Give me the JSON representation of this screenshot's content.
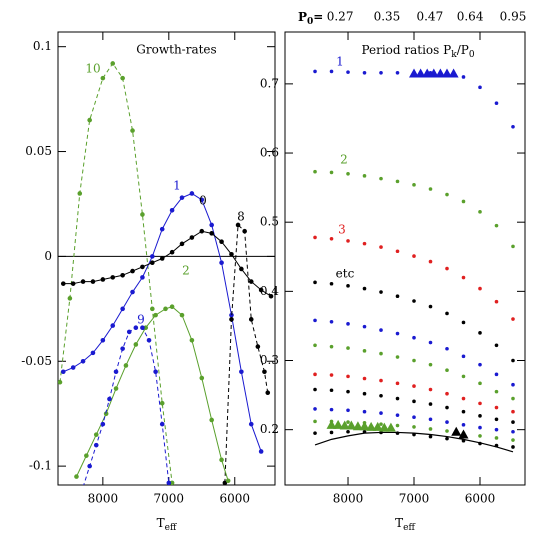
{
  "chart_data": [
    {
      "type": "line",
      "title": "Growth-rates",
      "xlabel": "T",
      "xlabel_sub": "eff",
      "xlim": [
        8680,
        5390
      ],
      "ylim": [
        -0.109,
        0.107
      ],
      "xticks": [
        8000,
        7000,
        6000
      ],
      "yticks": [
        0.1,
        0.05,
        0,
        -0.05,
        -0.1
      ],
      "hline": 0,
      "series": [
        {
          "name": "10",
          "color": "#5aa02c",
          "style": "dashed",
          "x": [
            8650,
            8500,
            8350,
            8200,
            8000,
            7850,
            7700,
            7550,
            7400,
            7250,
            7100,
            6950
          ],
          "values": [
            -0.06,
            -0.02,
            0.03,
            0.065,
            0.085,
            0.092,
            0.085,
            0.06,
            0.02,
            -0.025,
            -0.07,
            -0.108
          ]
        },
        {
          "name": "1",
          "color": "#1a1ad0",
          "style": "solid",
          "x": [
            8600,
            8450,
            8300,
            8150,
            8000,
            7850,
            7700,
            7550,
            7400,
            7250,
            7100,
            6950,
            6800,
            6650,
            6500,
            6350,
            6200,
            6050,
            5900,
            5750,
            5600
          ],
          "values": [
            -0.055,
            -0.053,
            -0.05,
            -0.046,
            -0.04,
            -0.033,
            -0.025,
            -0.017,
            -0.01,
            0.0,
            0.013,
            0.022,
            0.028,
            0.03,
            0.027,
            0.015,
            -0.003,
            -0.028,
            -0.055,
            -0.08,
            -0.093
          ]
        },
        {
          "name": "0",
          "color": "#000000",
          "style": "solid",
          "x": [
            8600,
            8450,
            8300,
            8150,
            8000,
            7850,
            7700,
            7550,
            7400,
            7250,
            7100,
            6950,
            6800,
            6650,
            6500,
            6350,
            6200,
            6050,
            5900,
            5750,
            5600,
            5450
          ],
          "values": [
            -0.013,
            -0.013,
            -0.012,
            -0.012,
            -0.011,
            -0.01,
            -0.009,
            -0.007,
            -0.005,
            -0.003,
            -0.001,
            0.002,
            0.006,
            0.009,
            0.012,
            0.011,
            0.007,
            0.001,
            -0.006,
            -0.012,
            -0.016,
            -0.019
          ]
        },
        {
          "name": "8",
          "color": "#000000",
          "style": "dashed",
          "x": [
            6150,
            6050,
            5950,
            5850,
            5750,
            5650,
            5550,
            5500
          ],
          "values": [
            -0.108,
            -0.03,
            0.015,
            0.012,
            -0.03,
            -0.043,
            -0.055,
            -0.065
          ]
        },
        {
          "name": "2",
          "color": "#5aa02c",
          "style": "solid",
          "x": [
            8400,
            8250,
            8100,
            7950,
            7800,
            7650,
            7500,
            7350,
            7200,
            7050,
            6950,
            6800,
            6650,
            6500,
            6350,
            6200,
            6100
          ],
          "values": [
            -0.105,
            -0.095,
            -0.085,
            -0.075,
            -0.063,
            -0.052,
            -0.042,
            -0.034,
            -0.028,
            -0.025,
            -0.024,
            -0.028,
            -0.04,
            -0.058,
            -0.078,
            -0.097,
            -0.107
          ]
        },
        {
          "name": "9",
          "color": "#1a1ad0",
          "style": "dashed",
          "x": [
            8300,
            8200,
            8100,
            8000,
            7900,
            7800,
            7700,
            7600,
            7500,
            7400,
            7300,
            7200,
            7100,
            7000
          ],
          "values": [
            -0.11,
            -0.1,
            -0.09,
            -0.08,
            -0.068,
            -0.055,
            -0.044,
            -0.036,
            -0.034,
            -0.034,
            -0.04,
            -0.055,
            -0.08,
            -0.108
          ]
        }
      ]
    },
    {
      "type": "scatter",
      "title_parts": [
        "Period ratios P",
        "k",
        "/P",
        "0"
      ],
      "xlabel": "T",
      "xlabel_sub": "eff",
      "top_label_parts": [
        "P",
        "0",
        "="
      ],
      "xlim": [
        8955,
        5318
      ],
      "ylim": [
        0.12,
        0.775
      ],
      "xticks": [
        8000,
        7000,
        6000
      ],
      "yticks": [
        0.7,
        0.6,
        0.5,
        0.4,
        0.3,
        0.2
      ],
      "top_ticks": [
        {
          "value": 8120,
          "label": "0.27"
        },
        {
          "value": 7410,
          "label": "0.35"
        },
        {
          "value": 6760,
          "label": "0.47"
        },
        {
          "value": 6150,
          "label": "0.64"
        },
        {
          "value": 5500,
          "label": "0.95"
        }
      ],
      "x": [
        8500,
        8250,
        8000,
        7750,
        7500,
        7250,
        7000,
        6750,
        6500,
        6250,
        6000,
        5750,
        5500
      ],
      "series": [
        {
          "name": "1",
          "color": "#1a1ad0",
          "style": "dots",
          "values": [
            0.718,
            0.718,
            0.717,
            0.716,
            0.716,
            0.716,
            0.716,
            0.716,
            0.715,
            0.71,
            0.695,
            0.672,
            0.638
          ]
        },
        {
          "name": "2",
          "color": "#5aa02c",
          "style": "dots",
          "values": [
            0.573,
            0.572,
            0.57,
            0.567,
            0.563,
            0.559,
            0.554,
            0.548,
            0.54,
            0.53,
            0.515,
            0.495,
            0.465
          ]
        },
        {
          "name": "3",
          "color": "#e02020",
          "style": "dots",
          "values": [
            0.478,
            0.476,
            0.473,
            0.469,
            0.464,
            0.458,
            0.451,
            0.443,
            0.433,
            0.42,
            0.404,
            0.385,
            0.36
          ]
        },
        {
          "name": "etc",
          "color": "#000000",
          "style": "dots",
          "values": [
            0.413,
            0.411,
            0.408,
            0.404,
            0.399,
            0.393,
            0.386,
            0.378,
            0.368,
            0.355,
            0.34,
            0.322,
            0.3
          ]
        },
        {
          "color": "#1a1ad0",
          "style": "dots",
          "values": [
            0.358,
            0.356,
            0.353,
            0.349,
            0.344,
            0.339,
            0.333,
            0.326,
            0.317,
            0.306,
            0.294,
            0.28,
            0.265
          ]
        },
        {
          "color": "#5aa02c",
          "style": "dots",
          "values": [
            0.322,
            0.32,
            0.318,
            0.314,
            0.31,
            0.305,
            0.3,
            0.294,
            0.286,
            0.277,
            0.267,
            0.255,
            0.245
          ]
        },
        {
          "color": "#e02020",
          "style": "dots",
          "values": [
            0.28,
            0.279,
            0.277,
            0.274,
            0.271,
            0.267,
            0.263,
            0.258,
            0.252,
            0.245,
            0.238,
            0.232,
            0.226
          ]
        },
        {
          "color": "#000000",
          "style": "dots",
          "values": [
            0.258,
            0.257,
            0.255,
            0.252,
            0.249,
            0.245,
            0.241,
            0.237,
            0.232,
            0.226,
            0.22,
            0.215,
            0.211
          ]
        },
        {
          "color": "#1a1ad0",
          "style": "dots",
          "values": [
            0.23,
            0.229,
            0.228,
            0.226,
            0.224,
            0.221,
            0.218,
            0.215,
            0.211,
            0.207,
            0.203,
            0.2,
            0.197
          ]
        },
        {
          "color": "#5aa02c",
          "style": "dots",
          "values": [
            0.212,
            0.212,
            0.211,
            0.21,
            0.208,
            0.206,
            0.204,
            0.201,
            0.198,
            0.195,
            0.191,
            0.188,
            0.185
          ]
        },
        {
          "color": "#000000",
          "style": "dots",
          "values": [
            0.195,
            0.196,
            0.197,
            0.197,
            0.196,
            0.195,
            0.193,
            0.19,
            0.187,
            0.184,
            0.18,
            0.177,
            0.175
          ]
        },
        {
          "color": "#000000",
          "style": "solid",
          "values": [
            0.178,
            0.186,
            0.191,
            0.195,
            0.196,
            0.196,
            0.195,
            0.193,
            0.19,
            0.186,
            0.181,
            0.175,
            0.168
          ]
        }
      ],
      "markers": [
        {
          "color": "#1a1ad0",
          "x": [
            7000,
            6900,
            6800,
            6700,
            6600,
            6500,
            6400
          ],
          "values": [
            0.715,
            0.715,
            0.715,
            0.715,
            0.715,
            0.715,
            0.715
          ]
        },
        {
          "color": "#5aa02c",
          "x": [
            8250,
            8150,
            8050,
            7950,
            7850,
            7750,
            7650,
            7550,
            7450,
            7350
          ],
          "values": [
            0.207,
            0.207,
            0.206,
            0.206,
            0.205,
            0.205,
            0.204,
            0.204,
            0.203,
            0.203
          ]
        },
        {
          "color": "#000000",
          "x": [
            6360,
            6250
          ],
          "values": [
            0.197,
            0.193
          ]
        }
      ]
    }
  ]
}
